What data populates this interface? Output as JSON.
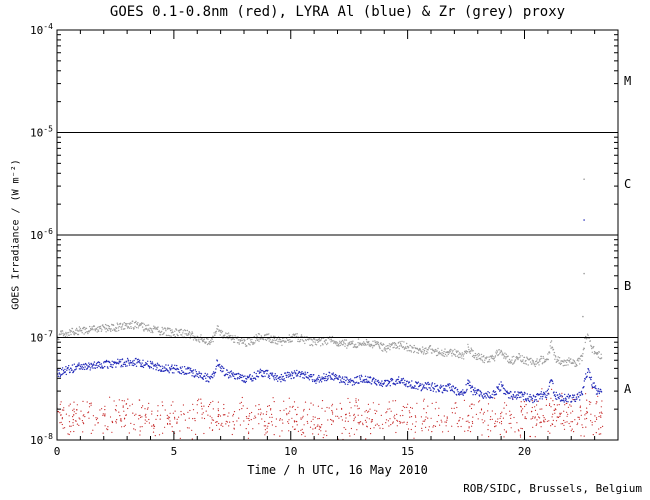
{
  "chart_data": {
    "type": "scatter",
    "title": "GOES 0.1-0.8nm (red), LYRA Al (blue) & Zr (grey) proxy",
    "xlabel": "Time / h UTC, 16 May 2010",
    "ylabel": "GOES Irradiance / (W m⁻²)",
    "credit": "ROB/SIDC, Brussels, Belgium",
    "grid": false,
    "x_range": [
      0,
      24
    ],
    "x_major_ticks": [
      0,
      5,
      10,
      15,
      20
    ],
    "x_minor_step": 1,
    "y_log_range": [
      -8,
      -4
    ],
    "y_axis_tick_exponents": [
      -4,
      -5,
      -6,
      -7,
      -8
    ],
    "class_boundary_exponents": [
      -5,
      -6,
      -7
    ],
    "flare_class_labels": [
      {
        "label": "M",
        "band": [
          -5,
          -4
        ]
      },
      {
        "label": "C",
        "band": [
          -6,
          -5
        ]
      },
      {
        "label": "B",
        "band": [
          -7,
          -6
        ]
      },
      {
        "label": "A",
        "band": [
          -8,
          -7
        ]
      }
    ],
    "axis_color": "#000000",
    "series": [
      {
        "name": "GOES 0.1-0.8nm",
        "color": "#c42020",
        "style": "noise_band",
        "bands": [
          {
            "t_range": [
              0,
              23.35
            ],
            "dex_range": [
              -8.02,
              -7.56
            ],
            "points": 880
          },
          {
            "t_range": [
              20.3,
              23.3
            ],
            "dex_range": [
              -7.8,
              -7.45
            ],
            "points": 35
          }
        ]
      },
      {
        "name": "LYRA Zr proxy",
        "color": "#9e9e9e",
        "style": "trend_scatter",
        "scatter_dex": 0.04,
        "anchors": [
          [
            0.0,
            1.02e-07
          ],
          [
            0.3,
            1.08e-07
          ],
          [
            0.7,
            1.13e-07
          ],
          [
            1.0,
            1.18e-07
          ],
          [
            1.3,
            1.16e-07
          ],
          [
            1.6,
            1.21e-07
          ],
          [
            2.0,
            1.24e-07
          ],
          [
            2.3,
            1.22e-07
          ],
          [
            2.6,
            1.27e-07
          ],
          [
            3.0,
            1.3e-07
          ],
          [
            3.3,
            1.32e-07
          ],
          [
            3.6,
            1.28e-07
          ],
          [
            4.0,
            1.22e-07
          ],
          [
            4.3,
            1.18e-07
          ],
          [
            4.6,
            1.14e-07
          ],
          [
            5.0,
            1.12e-07
          ],
          [
            5.3,
            1.1e-07
          ],
          [
            5.6,
            1.08e-07
          ],
          [
            5.9,
            1.02e-07
          ],
          [
            6.2,
            9.6e-08
          ],
          [
            6.5,
            9.2e-08
          ],
          [
            6.7,
            9.8e-08
          ],
          [
            6.85,
            1.26e-07
          ],
          [
            7.0,
            1.12e-07
          ],
          [
            7.2,
            1.03e-07
          ],
          [
            7.5,
            9.8e-08
          ],
          [
            7.8,
            9.3e-08
          ],
          [
            8.1,
            8.9e-08
          ],
          [
            8.4,
            9.4e-08
          ],
          [
            8.7,
            1.02e-07
          ],
          [
            9.0,
            1e-07
          ],
          [
            9.3,
            9.5e-08
          ],
          [
            9.6,
            9.1e-08
          ],
          [
            9.9,
            9.6e-08
          ],
          [
            10.2,
            1e-07
          ],
          [
            10.5,
            9.7e-08
          ],
          [
            10.8,
            9.2e-08
          ],
          [
            11.1,
            8.9e-08
          ],
          [
            11.4,
            9.2e-08
          ],
          [
            11.7,
            9.5e-08
          ],
          [
            12.0,
            9.1e-08
          ],
          [
            12.3,
            8.7e-08
          ],
          [
            12.6,
            8.4e-08
          ],
          [
            12.9,
            8.8e-08
          ],
          [
            13.2,
            9e-08
          ],
          [
            13.5,
            8.6e-08
          ],
          [
            13.8,
            8.2e-08
          ],
          [
            14.1,
            7.9e-08
          ],
          [
            14.4,
            8.3e-08
          ],
          [
            14.7,
            8.5e-08
          ],
          [
            15.0,
            8.1e-08
          ],
          [
            15.3,
            7.7e-08
          ],
          [
            15.6,
            7.4e-08
          ],
          [
            15.9,
            7.7e-08
          ],
          [
            16.2,
            7.2e-08
          ],
          [
            16.5,
            7e-08
          ],
          [
            16.8,
            7.4e-08
          ],
          [
            17.1,
            6.9e-08
          ],
          [
            17.4,
            6.6e-08
          ],
          [
            17.6,
            8e-08
          ],
          [
            17.8,
            6.8e-08
          ],
          [
            18.1,
            6.4e-08
          ],
          [
            18.4,
            6.1e-08
          ],
          [
            18.7,
            6.4e-08
          ],
          [
            19.0,
            7.6e-08
          ],
          [
            19.2,
            6.3e-08
          ],
          [
            19.5,
            6e-08
          ],
          [
            19.8,
            6.4e-08
          ],
          [
            20.1,
            5.9e-08
          ],
          [
            20.4,
            5.6e-08
          ],
          [
            20.7,
            6e-08
          ],
          [
            21.0,
            6.3e-08
          ],
          [
            21.15,
            8.8e-08
          ],
          [
            21.3,
            6.2e-08
          ],
          [
            21.6,
            5.7e-08
          ],
          [
            21.9,
            5.9e-08
          ],
          [
            22.2,
            5.6e-08
          ],
          [
            22.45,
            6.2e-08
          ],
          [
            22.6,
            9.5e-08
          ],
          [
            22.75,
            1.05e-07
          ],
          [
            22.9,
            7.8e-08
          ],
          [
            23.1,
            6.8e-08
          ],
          [
            23.3,
            6.4e-08
          ]
        ],
        "outliers": [
          [
            22.55,
            3.5e-06
          ],
          [
            22.55,
            4.2e-07
          ],
          [
            22.5,
            1.6e-07
          ]
        ]
      },
      {
        "name": "LYRA Al proxy",
        "color": "#2028b8",
        "style": "trend_scatter",
        "scatter_dex": 0.04,
        "anchors": [
          [
            0.0,
            4.4e-08
          ],
          [
            0.3,
            4.7e-08
          ],
          [
            0.7,
            5e-08
          ],
          [
            1.0,
            5.2e-08
          ],
          [
            1.3,
            5.1e-08
          ],
          [
            1.6,
            5.3e-08
          ],
          [
            2.0,
            5.5e-08
          ],
          [
            2.3,
            5.4e-08
          ],
          [
            2.6,
            5.6e-08
          ],
          [
            3.0,
            5.7e-08
          ],
          [
            3.3,
            5.8e-08
          ],
          [
            3.6,
            5.6e-08
          ],
          [
            4.0,
            5.4e-08
          ],
          [
            4.3,
            5.2e-08
          ],
          [
            4.6,
            5e-08
          ],
          [
            5.0,
            4.9e-08
          ],
          [
            5.3,
            4.8e-08
          ],
          [
            5.6,
            4.7e-08
          ],
          [
            5.9,
            4.5e-08
          ],
          [
            6.2,
            4.2e-08
          ],
          [
            6.5,
            4e-08
          ],
          [
            6.7,
            4.3e-08
          ],
          [
            6.85,
            5.6e-08
          ],
          [
            7.0,
            4.9e-08
          ],
          [
            7.2,
            4.5e-08
          ],
          [
            7.5,
            4.3e-08
          ],
          [
            7.8,
            4.1e-08
          ],
          [
            8.1,
            3.9e-08
          ],
          [
            8.4,
            4.1e-08
          ],
          [
            8.7,
            4.5e-08
          ],
          [
            9.0,
            4.4e-08
          ],
          [
            9.3,
            4.2e-08
          ],
          [
            9.6,
            4e-08
          ],
          [
            9.9,
            4.2e-08
          ],
          [
            10.2,
            4.4e-08
          ],
          [
            10.5,
            4.3e-08
          ],
          [
            10.8,
            4.1e-08
          ],
          [
            11.1,
            3.9e-08
          ],
          [
            11.4,
            4.1e-08
          ],
          [
            11.7,
            4.2e-08
          ],
          [
            12.0,
            4e-08
          ],
          [
            12.3,
            3.8e-08
          ],
          [
            12.6,
            3.7e-08
          ],
          [
            12.9,
            3.9e-08
          ],
          [
            13.2,
            4e-08
          ],
          [
            13.5,
            3.8e-08
          ],
          [
            13.8,
            3.6e-08
          ],
          [
            14.1,
            3.5e-08
          ],
          [
            14.4,
            3.7e-08
          ],
          [
            14.7,
            3.8e-08
          ],
          [
            15.0,
            3.6e-08
          ],
          [
            15.3,
            3.4e-08
          ],
          [
            15.6,
            3.3e-08
          ],
          [
            15.9,
            3.4e-08
          ],
          [
            16.2,
            3.2e-08
          ],
          [
            16.5,
            3.1e-08
          ],
          [
            16.8,
            3.3e-08
          ],
          [
            17.1,
            3e-08
          ],
          [
            17.4,
            2.9e-08
          ],
          [
            17.6,
            3.6e-08
          ],
          [
            17.8,
            3e-08
          ],
          [
            18.1,
            2.8e-08
          ],
          [
            18.4,
            2.7e-08
          ],
          [
            18.7,
            2.8e-08
          ],
          [
            19.0,
            3.4e-08
          ],
          [
            19.2,
            2.8e-08
          ],
          [
            19.5,
            2.7e-08
          ],
          [
            19.8,
            2.8e-08
          ],
          [
            20.1,
            2.6e-08
          ],
          [
            20.4,
            2.5e-08
          ],
          [
            20.7,
            2.7e-08
          ],
          [
            21.0,
            2.8e-08
          ],
          [
            21.15,
            3.9e-08
          ],
          [
            21.3,
            2.7e-08
          ],
          [
            21.6,
            2.5e-08
          ],
          [
            21.9,
            2.6e-08
          ],
          [
            22.2,
            2.5e-08
          ],
          [
            22.45,
            2.8e-08
          ],
          [
            22.6,
            4.2e-08
          ],
          [
            22.75,
            4.7e-08
          ],
          [
            22.9,
            3.5e-08
          ],
          [
            23.1,
            3e-08
          ],
          [
            23.3,
            2.8e-08
          ]
        ],
        "outliers": [
          [
            22.55,
            1.4e-06
          ]
        ]
      }
    ]
  }
}
